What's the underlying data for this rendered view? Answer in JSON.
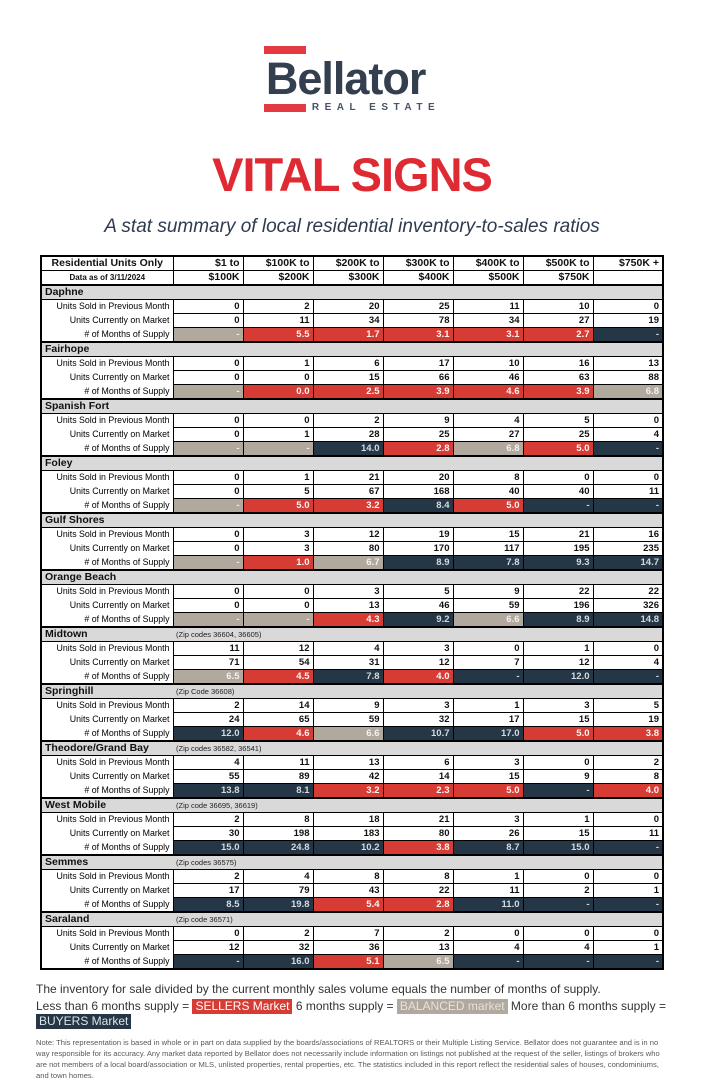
{
  "brand": {
    "name": "Bellator",
    "tagline": "REAL ESTATE"
  },
  "colors": {
    "sellers": "#d63b34",
    "balanced": "#b1a89e",
    "buyers": "#253746",
    "brand_red": "#e23a40",
    "brand_navy": "#333f4f",
    "title_red": "#de2a33",
    "section_gray": "#d9d9d9"
  },
  "title": "VITAL SIGNS",
  "subtitle": "A stat summary of local residential inventory-to-sales ratios",
  "table": {
    "corner_title": "Residential Units Only",
    "corner_subtitle": "Data as of 3/11/2024",
    "columns": [
      [
        "$1 to",
        "$100K"
      ],
      [
        "$100K to",
        "$200K"
      ],
      [
        "$200K to",
        "$300K"
      ],
      [
        "$300K to",
        "$400K"
      ],
      [
        "$400K to",
        "$500K"
      ],
      [
        "$500K to",
        "$750K"
      ],
      [
        "$750K +",
        ""
      ]
    ],
    "row_labels": {
      "sold": "Units Sold in Previous Month",
      "market": "Units Currently on Market",
      "supply": "# of Months of Supply"
    },
    "sections": [
      {
        "name": "Daphne",
        "zip": "",
        "sold": [
          "0",
          "2",
          "20",
          "25",
          "11",
          "10",
          "0"
        ],
        "market": [
          "0",
          "11",
          "34",
          "78",
          "34",
          "27",
          "19"
        ],
        "supply": [
          [
            "-",
            "b"
          ],
          [
            "5.5",
            "s"
          ],
          [
            "1.7",
            "s"
          ],
          [
            "3.1",
            "s"
          ],
          [
            "3.1",
            "s"
          ],
          [
            "2.7",
            "s"
          ],
          [
            "-",
            "y"
          ]
        ]
      },
      {
        "name": "Fairhope",
        "zip": "",
        "sold": [
          "0",
          "1",
          "6",
          "17",
          "10",
          "16",
          "13"
        ],
        "market": [
          "0",
          "0",
          "15",
          "66",
          "46",
          "63",
          "88"
        ],
        "supply": [
          [
            "-",
            "b"
          ],
          [
            "0.0",
            "s"
          ],
          [
            "2.5",
            "s"
          ],
          [
            "3.9",
            "s"
          ],
          [
            "4.6",
            "s"
          ],
          [
            "3.9",
            "s"
          ],
          [
            "6.8",
            "b"
          ]
        ]
      },
      {
        "name": "Spanish Fort",
        "zip": "",
        "sold": [
          "0",
          "0",
          "2",
          "9",
          "4",
          "5",
          "0"
        ],
        "market": [
          "0",
          "1",
          "28",
          "25",
          "27",
          "25",
          "4"
        ],
        "supply": [
          [
            "-",
            "b"
          ],
          [
            "-",
            "b"
          ],
          [
            "14.0",
            "y"
          ],
          [
            "2.8",
            "s"
          ],
          [
            "6.8",
            "b"
          ],
          [
            "5.0",
            "s"
          ],
          [
            "-",
            "y"
          ]
        ]
      },
      {
        "name": "Foley",
        "zip": "",
        "sold": [
          "0",
          "1",
          "21",
          "20",
          "8",
          "0",
          "0"
        ],
        "market": [
          "0",
          "5",
          "67",
          "168",
          "40",
          "40",
          "11"
        ],
        "supply": [
          [
            "-",
            "b"
          ],
          [
            "5.0",
            "s"
          ],
          [
            "3.2",
            "s"
          ],
          [
            "8.4",
            "y"
          ],
          [
            "5.0",
            "s"
          ],
          [
            "-",
            "y"
          ],
          [
            "-",
            "y"
          ]
        ]
      },
      {
        "name": "Gulf Shores",
        "zip": "",
        "sold": [
          "0",
          "3",
          "12",
          "19",
          "15",
          "21",
          "16"
        ],
        "market": [
          "0",
          "3",
          "80",
          "170",
          "117",
          "195",
          "235"
        ],
        "supply": [
          [
            "-",
            "b"
          ],
          [
            "1.0",
            "s"
          ],
          [
            "6.7",
            "b"
          ],
          [
            "8.9",
            "y"
          ],
          [
            "7.8",
            "y"
          ],
          [
            "9.3",
            "y"
          ],
          [
            "14.7",
            "y"
          ]
        ]
      },
      {
        "name": "Orange Beach",
        "zip": "",
        "sold": [
          "0",
          "0",
          "3",
          "5",
          "9",
          "22",
          "22"
        ],
        "market": [
          "0",
          "0",
          "13",
          "46",
          "59",
          "196",
          "326"
        ],
        "supply": [
          [
            "-",
            "b"
          ],
          [
            "-",
            "b"
          ],
          [
            "4.3",
            "s"
          ],
          [
            "9.2",
            "y"
          ],
          [
            "6.6",
            "b"
          ],
          [
            "8.9",
            "y"
          ],
          [
            "14.8",
            "y"
          ]
        ]
      },
      {
        "name": "Midtown",
        "zip": "(Zip codes 36604, 36605)",
        "sold": [
          "11",
          "12",
          "4",
          "3",
          "0",
          "1",
          "0"
        ],
        "market": [
          "71",
          "54",
          "31",
          "12",
          "7",
          "12",
          "4"
        ],
        "supply": [
          [
            "6.5",
            "b"
          ],
          [
            "4.5",
            "s"
          ],
          [
            "7.8",
            "y"
          ],
          [
            "4.0",
            "s"
          ],
          [
            "-",
            "y"
          ],
          [
            "12.0",
            "y"
          ],
          [
            "-",
            "y"
          ]
        ]
      },
      {
        "name": "Springhill",
        "zip": "(Zip Code 36608)",
        "sold": [
          "2",
          "14",
          "9",
          "3",
          "1",
          "3",
          "5"
        ],
        "market": [
          "24",
          "65",
          "59",
          "32",
          "17",
          "15",
          "19"
        ],
        "supply": [
          [
            "12.0",
            "y"
          ],
          [
            "4.6",
            "s"
          ],
          [
            "6.6",
            "b"
          ],
          [
            "10.7",
            "y"
          ],
          [
            "17.0",
            "y"
          ],
          [
            "5.0",
            "s"
          ],
          [
            "3.8",
            "s"
          ]
        ]
      },
      {
        "name": "Theodore/Grand Bay",
        "zip": "(Zip codes 36582, 36541)",
        "sold": [
          "4",
          "11",
          "13",
          "6",
          "3",
          "0",
          "2"
        ],
        "market": [
          "55",
          "89",
          "42",
          "14",
          "15",
          "9",
          "8"
        ],
        "supply": [
          [
            "13.8",
            "y"
          ],
          [
            "8.1",
            "y"
          ],
          [
            "3.2",
            "s"
          ],
          [
            "2.3",
            "s"
          ],
          [
            "5.0",
            "s"
          ],
          [
            "-",
            "y"
          ],
          [
            "4.0",
            "s"
          ]
        ]
      },
      {
        "name": "West Mobile",
        "zip": "(Zip code 36695, 36619)",
        "sold": [
          "2",
          "8",
          "18",
          "21",
          "3",
          "1",
          "0"
        ],
        "market": [
          "30",
          "198",
          "183",
          "80",
          "26",
          "15",
          "11"
        ],
        "supply": [
          [
            "15.0",
            "y"
          ],
          [
            "24.8",
            "y"
          ],
          [
            "10.2",
            "y"
          ],
          [
            "3.8",
            "s"
          ],
          [
            "8.7",
            "y"
          ],
          [
            "15.0",
            "y"
          ],
          [
            "-",
            "y"
          ]
        ]
      },
      {
        "name": "Semmes",
        "zip": "(Zip codes 36575)",
        "sold": [
          "2",
          "4",
          "8",
          "8",
          "1",
          "0",
          "0"
        ],
        "market": [
          "17",
          "79",
          "43",
          "22",
          "11",
          "2",
          "1"
        ],
        "supply": [
          [
            "8.5",
            "y"
          ],
          [
            "19.8",
            "y"
          ],
          [
            "5.4",
            "s"
          ],
          [
            "2.8",
            "s"
          ],
          [
            "11.0",
            "y"
          ],
          [
            "-",
            "y"
          ],
          [
            "-",
            "y"
          ]
        ]
      },
      {
        "name": "Saraland",
        "zip": "(Zip code 36571)",
        "sold": [
          "0",
          "2",
          "7",
          "2",
          "0",
          "0",
          "0"
        ],
        "market": [
          "12",
          "32",
          "36",
          "13",
          "4",
          "4",
          "1"
        ],
        "supply": [
          [
            "-",
            "y"
          ],
          [
            "16.0",
            "y"
          ],
          [
            "5.1",
            "s"
          ],
          [
            "6.5",
            "b"
          ],
          [
            "-",
            "y"
          ],
          [
            "-",
            "y"
          ],
          [
            "-",
            "y"
          ]
        ]
      }
    ]
  },
  "footer": {
    "line1": "The inventory for sale divided by the current monthly sales volume equals the number of months of supply.",
    "legend": [
      {
        "prefix": "Less than 6 months supply =",
        "chip": "SELLERS Market",
        "type": "s"
      },
      {
        "prefix": "6 months supply =",
        "chip": "BALANCED market",
        "type": "b"
      },
      {
        "prefix": "More than 6 months supply =",
        "chip": "BUYERS Market",
        "type": "y"
      }
    ],
    "note": "Note: This representation is based in whole or in part on data supplied by the boards/associations of REALTORS or their Multiple Listing Service. Bellator does not guarantee and is in no way responsible for its accuracy. Any market data reported by Bellator does not necessarily include information on listings not published at the request of the seller, listings of brokers who are not members of a local board/association or MLS, unlisted properties, rental properties, etc. The statistics included in this report reflect the residential sales of houses, condominiums, and town homes."
  }
}
